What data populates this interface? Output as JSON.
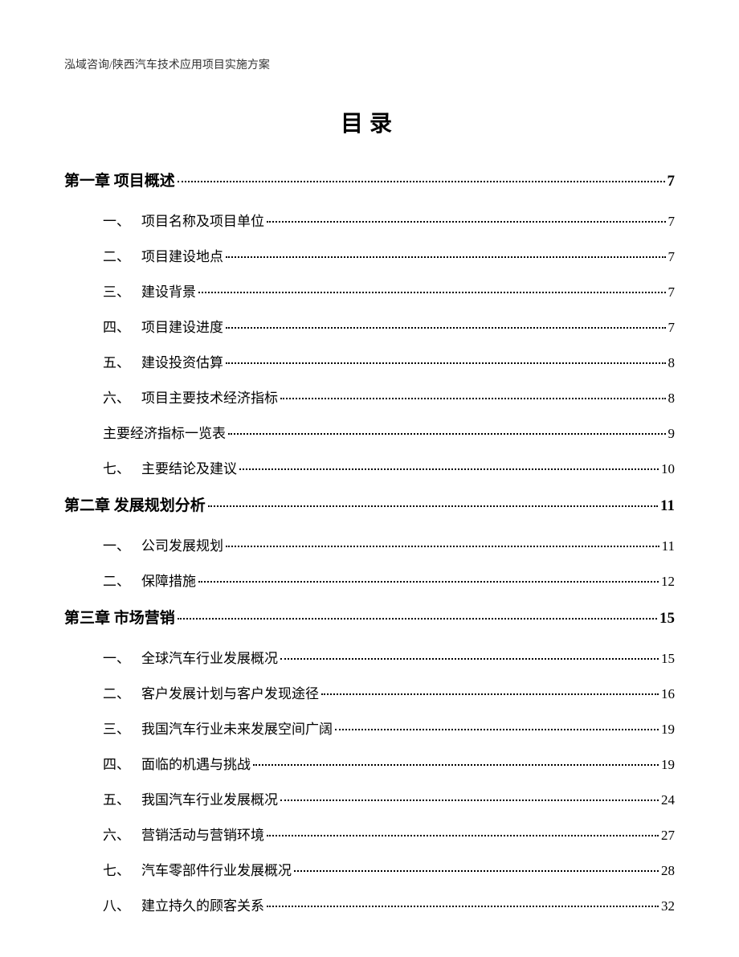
{
  "header": "泓域咨询/陕西汽车技术应用项目实施方案",
  "title": "目录",
  "toc": [
    {
      "type": "chapter",
      "label": "第一章 项目概述",
      "page": "7",
      "sections": [
        {
          "num": "一、",
          "label": "项目名称及项目单位",
          "page": "7"
        },
        {
          "num": "二、",
          "label": "项目建设地点",
          "page": "7"
        },
        {
          "num": "三、",
          "label": "建设背景",
          "page": "7"
        },
        {
          "num": "四、",
          "label": "项目建设进度",
          "page": "7"
        },
        {
          "num": "五、",
          "label": "建设投资估算",
          "page": "8"
        },
        {
          "num": "六、",
          "label": "项目主要技术经济指标",
          "page": "8"
        },
        {
          "num": "",
          "label": "主要经济指标一览表",
          "page": "9"
        },
        {
          "num": "七、",
          "label": "主要结论及建议",
          "page": "10"
        }
      ]
    },
    {
      "type": "chapter",
      "label": "第二章 发展规划分析",
      "page": "11",
      "sections": [
        {
          "num": "一、",
          "label": "公司发展规划",
          "page": "11"
        },
        {
          "num": "二、",
          "label": "保障措施",
          "page": "12"
        }
      ]
    },
    {
      "type": "chapter",
      "label": "第三章 市场营销",
      "page": "15",
      "sections": [
        {
          "num": "一、",
          "label": "全球汽车行业发展概况",
          "page": "15"
        },
        {
          "num": "二、",
          "label": "客户发展计划与客户发现途径",
          "page": "16"
        },
        {
          "num": "三、",
          "label": "我国汽车行业未来发展空间广阔",
          "page": "19"
        },
        {
          "num": "四、",
          "label": "面临的机遇与挑战",
          "page": "19"
        },
        {
          "num": "五、",
          "label": "我国汽车行业发展概况",
          "page": "24"
        },
        {
          "num": "六、",
          "label": "营销活动与营销环境",
          "page": "27"
        },
        {
          "num": "七、",
          "label": "汽车零部件行业发展概况",
          "page": "28"
        },
        {
          "num": "八、",
          "label": "建立持久的顾客关系",
          "page": "32"
        }
      ]
    }
  ]
}
